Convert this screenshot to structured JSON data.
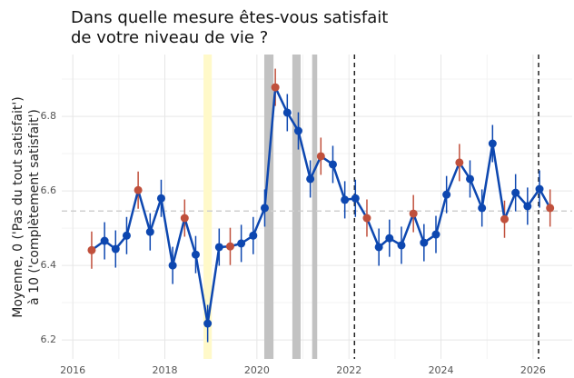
{
  "chart_data": {
    "type": "line",
    "title": [
      "Dans quelle mesure êtes-vous satisfait",
      "de votre niveau de vie ?"
    ],
    "y_label": [
      "Moyenne, 0 ('Pas du tout satisfait')",
      "à 10 ('complètement satisfait')"
    ],
    "x": [
      2016.41,
      2016.69,
      2016.93,
      2017.17,
      2017.42,
      2017.68,
      2017.92,
      2018.17,
      2018.43,
      2018.67,
      2018.93,
      2019.18,
      2019.42,
      2019.66,
      2019.92,
      2020.17,
      2020.4,
      2020.66,
      2020.9,
      2021.16,
      2021.39,
      2021.65,
      2021.91,
      2022.14,
      2022.39,
      2022.65,
      2022.88,
      2023.14,
      2023.4,
      2023.63,
      2023.89,
      2024.12,
      2024.4,
      2024.63,
      2024.89,
      2025.12,
      2025.38,
      2025.62,
      2025.88,
      2026.14,
      2026.37
    ],
    "values": [
      6.441,
      6.466,
      6.444,
      6.48,
      6.602,
      6.49,
      6.58,
      6.4,
      6.527,
      6.429,
      6.244,
      6.449,
      6.451,
      6.459,
      6.48,
      6.554,
      6.878,
      6.81,
      6.761,
      6.632,
      6.693,
      6.671,
      6.576,
      6.58,
      6.527,
      6.449,
      6.473,
      6.454,
      6.539,
      6.461,
      6.483,
      6.59,
      6.676,
      6.632,
      6.554,
      6.727,
      6.524,
      6.595,
      6.559,
      6.605,
      6.554
    ],
    "errors": [
      0.05,
      0.05,
      0.05,
      0.05,
      0.05,
      0.05,
      0.05,
      0.05,
      0.05,
      0.05,
      0.05,
      0.05,
      0.05,
      0.05,
      0.05,
      0.05,
      0.05,
      0.05,
      0.05,
      0.05,
      0.05,
      0.05,
      0.05,
      0.05,
      0.05,
      0.05,
      0.05,
      0.05,
      0.05,
      0.05,
      0.05,
      0.05,
      0.05,
      0.05,
      0.05,
      0.05,
      0.05,
      0.05,
      0.05,
      0.05,
      0.05
    ],
    "line_color": "#0d47b0",
    "point_colors": [
      "#c0503c",
      "#0d47b0",
      "#0d47b0",
      "#0d47b0",
      "#c0503c",
      "#0d47b0",
      "#0d47b0",
      "#0d47b0",
      "#c0503c",
      "#0d47b0",
      "#0d47b0",
      "#0d47b0",
      "#c0503c",
      "#0d47b0",
      "#0d47b0",
      "#0d47b0",
      "#c0503c",
      "#0d47b0",
      "#0d47b0",
      "#0d47b0",
      "#c0503c",
      "#0d47b0",
      "#0d47b0",
      "#0d47b0",
      "#c0503c",
      "#0d47b0",
      "#0d47b0",
      "#0d47b0",
      "#c0503c",
      "#0d47b0",
      "#0d47b0",
      "#0d47b0",
      "#c0503c",
      "#0d47b0",
      "#0d47b0",
      "#0d47b0",
      "#c0503c",
      "#0d47b0",
      "#0d47b0",
      "#0d47b0",
      "#c0503c"
    ],
    "error_colors": [
      "#c0503c",
      "#0d47b0"
    ],
    "shaded_regions": [
      {
        "from": 2018.84,
        "to": 2019.02,
        "color": "#fff9c9"
      },
      {
        "from": 2020.16,
        "to": 2020.36,
        "color": "#c2c2c2"
      },
      {
        "from": 2020.77,
        "to": 2020.95,
        "color": "#c2c2c2"
      },
      {
        "from": 2021.2,
        "to": 2021.31,
        "color": "#c2c2c2"
      }
    ],
    "vlines": [
      2022.12,
      2026.12
    ],
    "hline": 6.546,
    "xlim": [
      2015.76,
      2026.85
    ],
    "ylim": [
      6.149,
      6.966
    ],
    "xticks": [
      2016,
      2018,
      2020,
      2022,
      2024,
      2026
    ],
    "xminor": [
      2017,
      2019,
      2021,
      2023,
      2025
    ],
    "yticks": [
      6.2,
      6.4,
      6.6,
      6.8
    ],
    "yminor": [
      6.3,
      6.5,
      6.7,
      6.9
    ],
    "grid": true
  }
}
